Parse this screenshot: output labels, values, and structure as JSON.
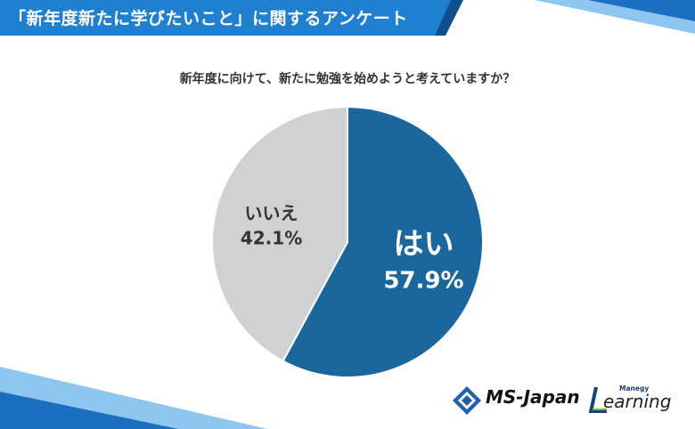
{
  "header": {
    "title": "「新年度新たに学びたいこと」に関するアンケート"
  },
  "question": "新年度に向けて、新たに勉強を始めようと考えていますか？",
  "colors": {
    "yes": "#1a679e",
    "no": "#d0d1d3",
    "header_blue": "#1f7fd0",
    "header_dark": "#0d4f8f"
  },
  "chart_data": {
    "type": "pie",
    "title": "新年度に向けて、新たに勉強を始めようと考えていますか？",
    "slices": [
      {
        "label": "はい",
        "value": 57.9,
        "display": "57.9%"
      },
      {
        "label": "いいえ",
        "value": 42.1,
        "display": "42.1%"
      }
    ],
    "start": "12 o'clock, clockwise"
  },
  "logos": {
    "ms_japan": "MS-Japan",
    "manegy": "Manegy",
    "learning": "earning"
  }
}
